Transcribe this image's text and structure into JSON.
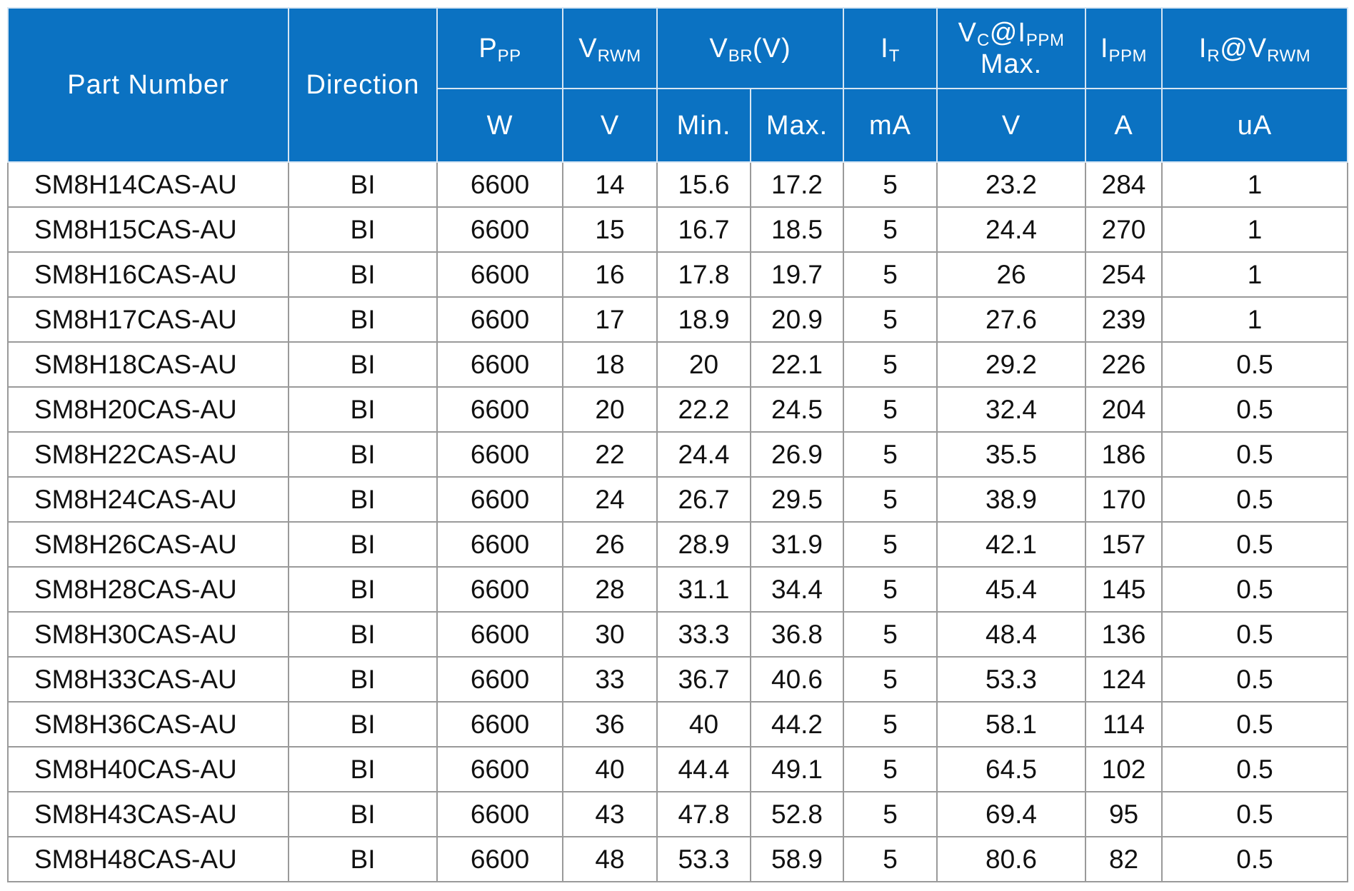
{
  "header": {
    "row1": [
      {
        "lines": [
          [
            {
              "text": "Part Number"
            }
          ]
        ]
      },
      {
        "lines": [
          [
            {
              "text": "Direction"
            }
          ]
        ]
      },
      {
        "lines": [
          [
            {
              "text": "P"
            },
            {
              "text": "PP",
              "sub": true
            }
          ]
        ]
      },
      {
        "lines": [
          [
            {
              "text": "V"
            },
            {
              "text": "RWM",
              "sub": true
            }
          ]
        ]
      },
      {
        "lines": [
          [
            {
              "text": "V"
            },
            {
              "text": "BR",
              "sub": true
            },
            {
              "text": "(V)"
            }
          ]
        ]
      },
      {
        "lines": [
          [
            {
              "text": "I"
            },
            {
              "text": "T",
              "sub": true
            }
          ]
        ]
      },
      {
        "lines": [
          [
            {
              "text": "V"
            },
            {
              "text": "C",
              "sub": true
            },
            {
              "text": "@I"
            },
            {
              "text": "PPM",
              "sub": true
            }
          ],
          [
            {
              "text": "Max."
            }
          ]
        ]
      },
      {
        "lines": [
          [
            {
              "text": "I"
            },
            {
              "text": "PPM",
              "sub": true
            }
          ]
        ]
      },
      {
        "lines": [
          [
            {
              "text": "I"
            },
            {
              "text": "R",
              "sub": true
            },
            {
              "text": "@V"
            },
            {
              "text": "RWM",
              "sub": true
            }
          ]
        ]
      }
    ],
    "row2": [
      "W",
      "V",
      "Min.",
      "Max.",
      "mA",
      "V",
      "A",
      "uA"
    ]
  },
  "table": {
    "rows": [
      [
        "SM8H14CAS-AU",
        "BI",
        6600,
        14,
        15.6,
        17.2,
        5,
        23.2,
        284,
        1
      ],
      [
        "SM8H15CAS-AU",
        "BI",
        6600,
        15,
        16.7,
        18.5,
        5,
        24.4,
        270,
        1
      ],
      [
        "SM8H16CAS-AU",
        "BI",
        6600,
        16,
        17.8,
        19.7,
        5,
        26,
        254,
        1
      ],
      [
        "SM8H17CAS-AU",
        "BI",
        6600,
        17,
        18.9,
        20.9,
        5,
        27.6,
        239,
        1
      ],
      [
        "SM8H18CAS-AU",
        "BI",
        6600,
        18,
        20,
        22.1,
        5,
        29.2,
        226,
        0.5
      ],
      [
        "SM8H20CAS-AU",
        "BI",
        6600,
        20,
        22.2,
        24.5,
        5,
        32.4,
        204,
        0.5
      ],
      [
        "SM8H22CAS-AU",
        "BI",
        6600,
        22,
        24.4,
        26.9,
        5,
        35.5,
        186,
        0.5
      ],
      [
        "SM8H24CAS-AU",
        "BI",
        6600,
        24,
        26.7,
        29.5,
        5,
        38.9,
        170,
        0.5
      ],
      [
        "SM8H26CAS-AU",
        "BI",
        6600,
        26,
        28.9,
        31.9,
        5,
        42.1,
        157,
        0.5
      ],
      [
        "SM8H28CAS-AU",
        "BI",
        6600,
        28,
        31.1,
        34.4,
        5,
        45.4,
        145,
        0.5
      ],
      [
        "SM8H30CAS-AU",
        "BI",
        6600,
        30,
        33.3,
        36.8,
        5,
        48.4,
        136,
        0.5
      ],
      [
        "SM8H33CAS-AU",
        "BI",
        6600,
        33,
        36.7,
        40.6,
        5,
        53.3,
        124,
        0.5
      ],
      [
        "SM8H36CAS-AU",
        "BI",
        6600,
        36,
        40,
        44.2,
        5,
        58.1,
        114,
        0.5
      ],
      [
        "SM8H40CAS-AU",
        "BI",
        6600,
        40,
        44.4,
        49.1,
        5,
        64.5,
        102,
        0.5
      ],
      [
        "SM8H43CAS-AU",
        "BI",
        6600,
        43,
        47.8,
        52.8,
        5,
        69.4,
        95,
        0.5
      ],
      [
        "SM8H48CAS-AU",
        "BI",
        6600,
        48,
        53.3,
        58.9,
        5,
        80.6,
        82,
        0.5
      ]
    ]
  }
}
